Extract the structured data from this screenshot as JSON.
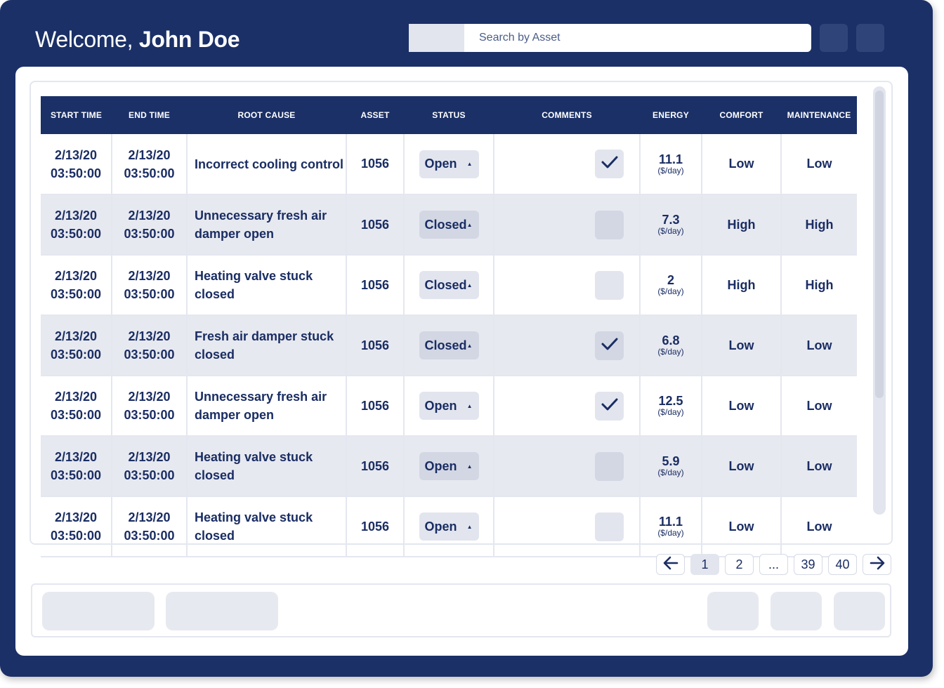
{
  "header": {
    "welcome_prefix": "Welcome,",
    "user_name": "John Doe",
    "search_placeholder": "Search by Asset"
  },
  "table": {
    "columns": [
      "START TIME",
      "END TIME",
      "ROOT CAUSE",
      "ASSET",
      "STATUS",
      "COMMENTS",
      "ENERGY",
      "COMFORT",
      "MAINTENANCE"
    ],
    "energy_unit": "($/day)",
    "rows": [
      {
        "start_date": "2/13/20",
        "start_time": "03:50:00",
        "end_date": "2/13/20",
        "end_time": "03:50:00",
        "cause": "Incorrect cooling control",
        "asset": "1056",
        "status": "Open",
        "checked": true,
        "energy": "11.1",
        "comfort": "Low",
        "maintenance": "Low"
      },
      {
        "start_date": "2/13/20",
        "start_time": "03:50:00",
        "end_date": "2/13/20",
        "end_time": "03:50:00",
        "cause": "Unnecessary fresh air damper open",
        "asset": "1056",
        "status": "Closed",
        "checked": false,
        "energy": "7.3",
        "comfort": "High",
        "maintenance": "High"
      },
      {
        "start_date": "2/13/20",
        "start_time": "03:50:00",
        "end_date": "2/13/20",
        "end_time": "03:50:00",
        "cause": "Heating valve stuck closed",
        "asset": "1056",
        "status": "Closed",
        "checked": false,
        "energy": "2",
        "comfort": "High",
        "maintenance": "High"
      },
      {
        "start_date": "2/13/20",
        "start_time": "03:50:00",
        "end_date": "2/13/20",
        "end_time": "03:50:00",
        "cause": "Fresh air damper stuck closed",
        "asset": "1056",
        "status": "Closed",
        "checked": true,
        "energy": "6.8",
        "comfort": "Low",
        "maintenance": "Low"
      },
      {
        "start_date": "2/13/20",
        "start_time": "03:50:00",
        "end_date": "2/13/20",
        "end_time": "03:50:00",
        "cause": "Unnecessary fresh air damper open",
        "asset": "1056",
        "status": "Open",
        "checked": true,
        "energy": "12.5",
        "comfort": "Low",
        "maintenance": "Low"
      },
      {
        "start_date": "2/13/20",
        "start_time": "03:50:00",
        "end_date": "2/13/20",
        "end_time": "03:50:00",
        "cause": "Heating valve stuck closed",
        "asset": "1056",
        "status": "Open",
        "checked": false,
        "energy": "5.9",
        "comfort": "Low",
        "maintenance": "Low"
      },
      {
        "start_date": "2/13/20",
        "start_time": "03:50:00",
        "end_date": "2/13/20",
        "end_time": "03:50:00",
        "cause": "Heating valve stuck closed",
        "asset": "1056",
        "status": "Open",
        "checked": false,
        "energy": "11.1",
        "comfort": "Low",
        "maintenance": "Low"
      }
    ]
  },
  "pagination": {
    "pages": [
      "1",
      "2",
      "...",
      "39",
      "40"
    ],
    "current": "1",
    "prev_icon": "arrow-left-icon",
    "next_icon": "arrow-right-icon"
  },
  "colors": {
    "navy": "#1b3067",
    "row_alt": "#e7e9f0",
    "control_bg": "#e2e5ee"
  }
}
